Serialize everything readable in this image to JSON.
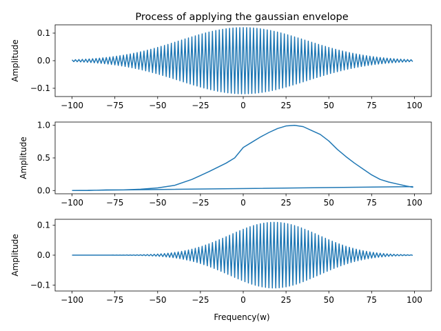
{
  "chart_data": [
    {
      "type": "line",
      "title": "Process of applying the gaussian envelope",
      "xlabel": "",
      "ylabel": "Amplitude",
      "xlim": [
        -109.9,
        109.9
      ],
      "ylim": [
        -0.13,
        0.13
      ],
      "xticks": [
        -100,
        -75,
        -50,
        -25,
        0,
        25,
        50,
        75,
        100
      ],
      "yticks": [
        -0.1,
        0.0,
        0.1
      ],
      "ytick_labels": [
        "−0.1",
        "0.0",
        "0.1"
      ],
      "series": [
        {
          "kind": "modulated_oscillation",
          "color": "#1f77b4",
          "x_range": [
            -100,
            99
          ],
          "x_step": 1,
          "envelope_peak": 0.12,
          "envelope_center": 0,
          "envelope_sigma": 37
        }
      ]
    },
    {
      "type": "line",
      "title": "",
      "xlabel": "",
      "ylabel": "Amplitude",
      "xlim": [
        -109.9,
        109.9
      ],
      "ylim": [
        -0.05,
        1.05
      ],
      "xticks": [
        -100,
        -75,
        -50,
        -25,
        0,
        25,
        50,
        75,
        100
      ],
      "yticks": [
        0.0,
        0.5,
        1.0
      ],
      "ytick_labels": [
        "0.0",
        "0.5",
        "1.0"
      ],
      "series": [
        {
          "kind": "envelope",
          "color": "#1f77b4",
          "points": [
            [
              -100,
              0.0
            ],
            [
              -90,
              0.0
            ],
            [
              -80,
              0.01
            ],
            [
              -70,
              0.01
            ],
            [
              -60,
              0.02
            ],
            [
              -50,
              0.04
            ],
            [
              -40,
              0.08
            ],
            [
              -30,
              0.17
            ],
            [
              -25,
              0.23
            ],
            [
              -20,
              0.29
            ],
            [
              -10,
              0.42
            ],
            [
              -5,
              0.5
            ],
            [
              0,
              0.66
            ],
            [
              5,
              0.74
            ],
            [
              10,
              0.82
            ],
            [
              15,
              0.89
            ],
            [
              20,
              0.95
            ],
            [
              25,
              0.99
            ],
            [
              30,
              1.0
            ],
            [
              35,
              0.98
            ],
            [
              40,
              0.92
            ],
            [
              45,
              0.86
            ],
            [
              50,
              0.76
            ],
            [
              55,
              0.63
            ],
            [
              60,
              0.52
            ],
            [
              65,
              0.42
            ],
            [
              70,
              0.33
            ],
            [
              75,
              0.24
            ],
            [
              80,
              0.17
            ],
            [
              85,
              0.13
            ],
            [
              90,
              0.1
            ],
            [
              95,
              0.07
            ],
            [
              99,
              0.05
            ],
            [
              -100,
              0.0
            ]
          ],
          "closing_line_end_y": 0.06
        }
      ]
    },
    {
      "type": "line",
      "title": "",
      "xlabel": "Frequency(w)",
      "ylabel": "Amplitude",
      "xlim": [
        -109.9,
        109.9
      ],
      "ylim": [
        -0.12,
        0.12
      ],
      "xticks": [
        -100,
        -75,
        -50,
        -25,
        0,
        25,
        50,
        75,
        100
      ],
      "yticks": [
        -0.1,
        0.0,
        0.1
      ],
      "ytick_labels": [
        "−0.1",
        "0.0",
        "0.1"
      ],
      "series": [
        {
          "kind": "modulated_oscillation",
          "color": "#1f77b4",
          "x_range": [
            -100,
            99
          ],
          "x_step": 1,
          "envelope_peak": 0.11,
          "envelope_center": 18,
          "envelope_sigma": 26
        }
      ]
    }
  ],
  "xtick_labels": [
    "−100",
    "−75",
    "−50",
    "−25",
    "0",
    "25",
    "50",
    "75",
    "100"
  ]
}
